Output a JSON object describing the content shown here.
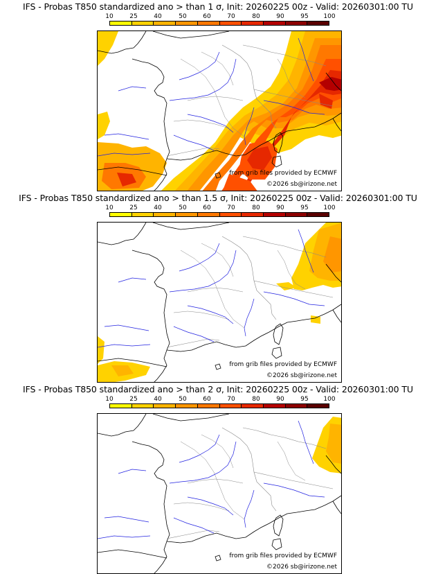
{
  "colors": {
    "scale": [
      "#ffff00",
      "#ffd200",
      "#ffb400",
      "#ff9600",
      "#ff7800",
      "#ff5000",
      "#e62800",
      "#b40000",
      "#8c0000",
      "#5a0000"
    ],
    "border": "#888888",
    "river": "#2020e0",
    "coast": "#000000"
  },
  "scale_labels": [
    "10",
    "25",
    "40",
    "50",
    "60",
    "70",
    "80",
    "90",
    "95",
    "100"
  ],
  "panels": [
    {
      "title": "IFS - Probas T850  standardized ano > than 1 σ, Init: 20260225 00z - Valid: 20260301:00 TU",
      "credit_source": "from grib files provided by ECMWF",
      "credit_copyright": "©2026 sb@irizone.net"
    },
    {
      "title": "IFS - Probas T850  standardized ano > than 1.5 σ, Init: 20260225 00z - Valid: 20260301:00 TU",
      "credit_source": "from grib files provided by ECMWF",
      "credit_copyright": "©2026 sb@irizone.net"
    },
    {
      "title": "IFS - Probas T850  standardized ano > than 2 σ, Init: 20260225 00z - Valid: 20260301:00 TU",
      "credit_source": "from grib files provided by ECMWF",
      "credit_copyright": "©2026 sb@irizone.net"
    }
  ]
}
